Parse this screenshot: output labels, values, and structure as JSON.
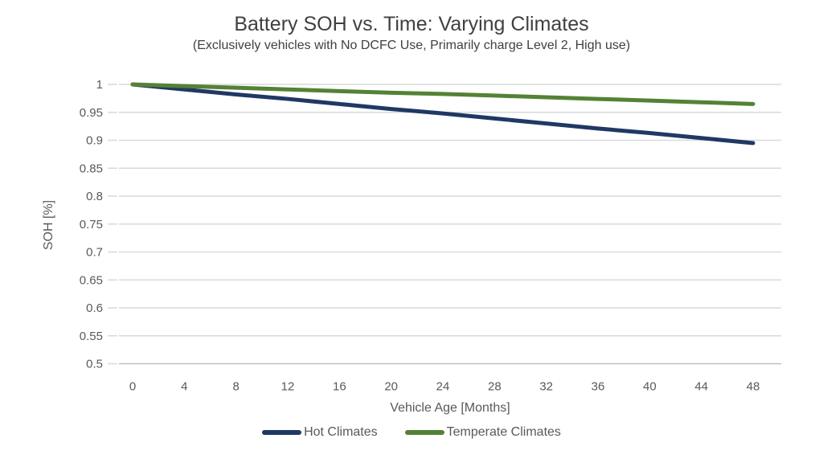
{
  "chart_data": {
    "type": "line",
    "title": "Battery SOH vs. Time: Varying Climates",
    "subtitle": "(Exclusively vehicles with No DCFC Use, Primarily charge Level 2, High use)",
    "xlabel": "Vehicle Age [Months]",
    "ylabel": "SOH [%]",
    "x": [
      0,
      4,
      8,
      12,
      16,
      20,
      24,
      28,
      32,
      36,
      40,
      44,
      48
    ],
    "xticks": [
      0,
      4,
      8,
      12,
      16,
      20,
      24,
      28,
      32,
      36,
      40,
      44,
      48
    ],
    "yticks": [
      1,
      0.95,
      0.9,
      0.85,
      0.8,
      0.75,
      0.7,
      0.65,
      0.6,
      0.55,
      0.5
    ],
    "xlim": [
      0,
      48
    ],
    "ylim": [
      0.5,
      1.0
    ],
    "grid": "horizontal",
    "legend_position": "bottom-center",
    "series": [
      {
        "name": "Hot Climates",
        "color": "#203864",
        "values": [
          1.0,
          0.991,
          0.982,
          0.974,
          0.965,
          0.956,
          0.948,
          0.939,
          0.93,
          0.921,
          0.913,
          0.904,
          0.895
        ]
      },
      {
        "name": "Temperate Climates",
        "color": "#548235",
        "values": [
          1.0,
          0.997,
          0.994,
          0.991,
          0.988,
          0.985,
          0.983,
          0.98,
          0.977,
          0.974,
          0.971,
          0.968,
          0.965
        ]
      }
    ]
  },
  "colors": {
    "title_text": "#404040",
    "axis_text": "#595959",
    "gridline": "#d9d9d9",
    "axis_line": "#bfbfbf",
    "background": "#ffffff"
  }
}
